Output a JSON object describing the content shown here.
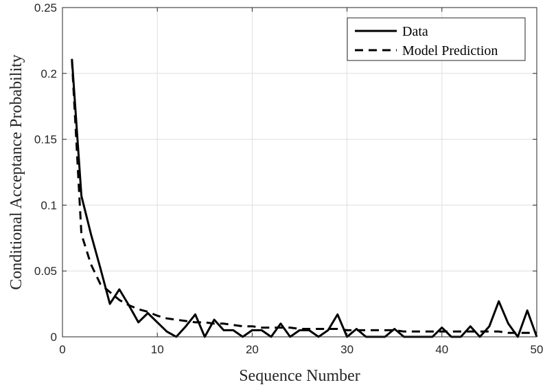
{
  "chart_data": {
    "type": "line",
    "xlabel": "Sequence Number",
    "ylabel": "Conditional Acceptance Probability",
    "xlim": [
      0,
      50
    ],
    "ylim": [
      0,
      0.25
    ],
    "xticks": [
      0,
      10,
      20,
      30,
      40,
      50
    ],
    "yticks": [
      0,
      0.05,
      0.1,
      0.15,
      0.2,
      0.25
    ],
    "xtick_labels": [
      "0",
      "10",
      "20",
      "30",
      "40",
      "50"
    ],
    "ytick_labels": [
      "0",
      "0.05",
      "0.1",
      "0.15",
      "0.2",
      "0.25"
    ],
    "grid": true,
    "legend_position": "top-right",
    "series": [
      {
        "name": "Data",
        "style": "solid",
        "color": "#000000",
        "x": [
          1,
          2,
          3,
          4,
          5,
          6,
          7,
          8,
          9,
          10,
          11,
          12,
          13,
          14,
          15,
          16,
          17,
          18,
          19,
          20,
          21,
          22,
          23,
          24,
          25,
          26,
          27,
          28,
          29,
          30,
          31,
          32,
          33,
          34,
          35,
          36,
          37,
          38,
          39,
          40,
          41,
          42,
          43,
          44,
          45,
          46,
          47,
          48,
          49,
          50
        ],
        "y": [
          0.211,
          0.107,
          0.078,
          0.052,
          0.025,
          0.036,
          0.024,
          0.011,
          0.018,
          0.011,
          0.004,
          0.0,
          0.008,
          0.017,
          0.0,
          0.013,
          0.005,
          0.005,
          0.0,
          0.005,
          0.005,
          0.0,
          0.01,
          0.0,
          0.005,
          0.005,
          0.0,
          0.005,
          0.017,
          0.0,
          0.006,
          0.0,
          0.0,
          0.0,
          0.006,
          0.0,
          0.0,
          0.0,
          0.0,
          0.007,
          0.0,
          0.0,
          0.008,
          0.0,
          0.008,
          0.027,
          0.01,
          0.0,
          0.02,
          0.0
        ]
      },
      {
        "name": "Model Prediction",
        "style": "dashed",
        "color": "#000000",
        "x": [
          1,
          2,
          3,
          4,
          5,
          6,
          7,
          8,
          9,
          10,
          11,
          12,
          13,
          14,
          15,
          16,
          17,
          18,
          19,
          20,
          21,
          22,
          23,
          24,
          25,
          26,
          27,
          28,
          29,
          30,
          31,
          32,
          33,
          34,
          35,
          36,
          37,
          38,
          39,
          40,
          41,
          42,
          43,
          44,
          45,
          46,
          47,
          48,
          49,
          50
        ],
        "y": [
          0.21,
          0.078,
          0.055,
          0.04,
          0.034,
          0.028,
          0.024,
          0.021,
          0.019,
          0.016,
          0.014,
          0.013,
          0.012,
          0.011,
          0.011,
          0.01,
          0.01,
          0.009,
          0.008,
          0.008,
          0.007,
          0.007,
          0.007,
          0.007,
          0.006,
          0.006,
          0.006,
          0.006,
          0.006,
          0.005,
          0.005,
          0.005,
          0.005,
          0.005,
          0.005,
          0.004,
          0.004,
          0.004,
          0.004,
          0.004,
          0.004,
          0.004,
          0.004,
          0.004,
          0.004,
          0.004,
          0.003,
          0.003,
          0.003,
          0.003
        ]
      }
    ]
  }
}
